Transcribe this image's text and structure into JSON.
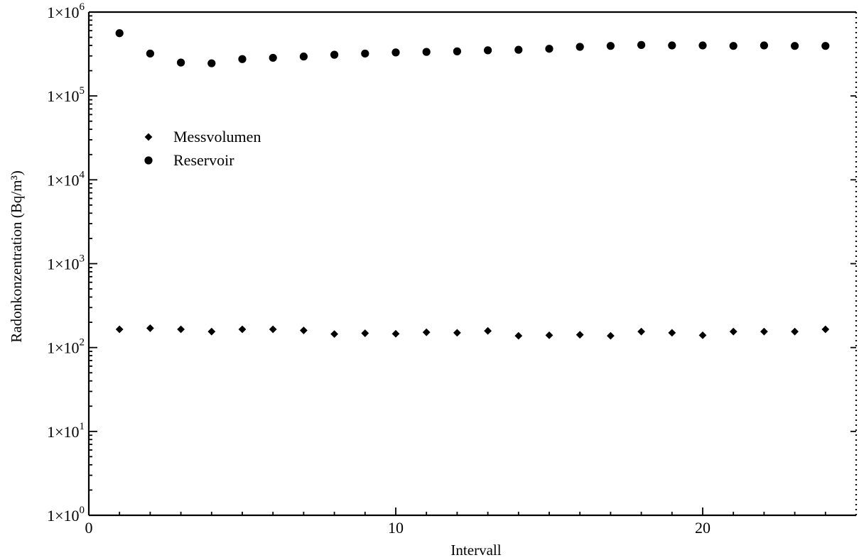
{
  "chart_data": {
    "type": "scatter",
    "title": "",
    "xlabel": "Intervall",
    "ylabel": "Radonkonzentration (Bq/m³)",
    "x_scale": "linear",
    "y_scale": "log",
    "xlim": [
      0,
      25
    ],
    "ylim": [
      1,
      1000000
    ],
    "x_ticks": [
      {
        "value": 0,
        "label": "0"
      },
      {
        "value": 10,
        "label": "10"
      },
      {
        "value": 20,
        "label": "20"
      }
    ],
    "y_ticks": [
      {
        "value": 1,
        "mantissa": "1×10",
        "exp": "0"
      },
      {
        "value": 10,
        "mantissa": "1×10",
        "exp": "1"
      },
      {
        "value": 100,
        "mantissa": "1×10",
        "exp": "2"
      },
      {
        "value": 1000,
        "mantissa": "1×10",
        "exp": "3"
      },
      {
        "value": 10000,
        "mantissa": "1×10",
        "exp": "4"
      },
      {
        "value": 100000,
        "mantissa": "1×10",
        "exp": "5"
      },
      {
        "value": 1000000,
        "mantissa": "1×10",
        "exp": "6"
      }
    ],
    "grid": false,
    "legend_position": "upper-left",
    "series": [
      {
        "name": "Messvolumen",
        "marker": "diamond",
        "color": "#000000",
        "points": [
          [
            1,
            165
          ],
          [
            2,
            170
          ],
          [
            3,
            165
          ],
          [
            4,
            155
          ],
          [
            5,
            165
          ],
          [
            6,
            165
          ],
          [
            7,
            160
          ],
          [
            8,
            145
          ],
          [
            9,
            148
          ],
          [
            10,
            146
          ],
          [
            11,
            152
          ],
          [
            12,
            150
          ],
          [
            13,
            158
          ],
          [
            14,
            138
          ],
          [
            15,
            140
          ],
          [
            16,
            142
          ],
          [
            17,
            138
          ],
          [
            18,
            155
          ],
          [
            19,
            150
          ],
          [
            20,
            140
          ],
          [
            21,
            155
          ],
          [
            22,
            155
          ],
          [
            23,
            155
          ],
          [
            24,
            165
          ]
        ]
      },
      {
        "name": "Reservoir",
        "marker": "circle",
        "color": "#000000",
        "points": [
          [
            1,
            560000
          ],
          [
            2,
            320000
          ],
          [
            3,
            250000
          ],
          [
            4,
            245000
          ],
          [
            5,
            275000
          ],
          [
            6,
            285000
          ],
          [
            7,
            295000
          ],
          [
            8,
            310000
          ],
          [
            9,
            320000
          ],
          [
            10,
            330000
          ],
          [
            11,
            335000
          ],
          [
            12,
            340000
          ],
          [
            13,
            350000
          ],
          [
            14,
            355000
          ],
          [
            15,
            365000
          ],
          [
            16,
            385000
          ],
          [
            17,
            395000
          ],
          [
            18,
            405000
          ],
          [
            19,
            400000
          ],
          [
            20,
            400000
          ],
          [
            21,
            395000
          ],
          [
            22,
            400000
          ],
          [
            23,
            395000
          ],
          [
            24,
            395000
          ]
        ]
      }
    ]
  }
}
